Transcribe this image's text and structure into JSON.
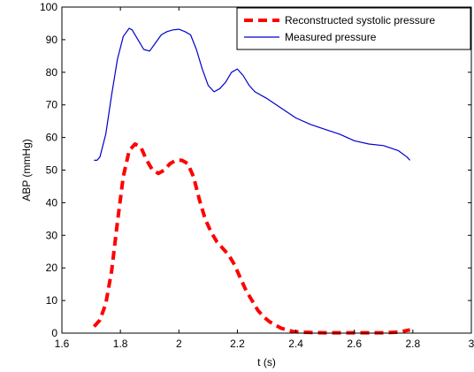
{
  "chart_data": {
    "type": "line",
    "title": "",
    "xlabel": "t (s)",
    "ylabel": "ABP (mmHg)",
    "xlim": [
      1.6,
      3.0
    ],
    "ylim": [
      0,
      100
    ],
    "xticks": [
      1.6,
      1.8,
      2.0,
      2.2,
      2.4,
      2.6,
      2.8,
      3.0
    ],
    "xtick_labels": [
      "1.6",
      "1.8",
      "2",
      "2.2",
      "2.4",
      "2.6",
      "2.8",
      "3"
    ],
    "yticks": [
      0,
      10,
      20,
      30,
      40,
      50,
      60,
      70,
      80,
      90,
      100
    ],
    "ytick_labels": [
      "0",
      "10",
      "20",
      "30",
      "40",
      "50",
      "60",
      "70",
      "80",
      "90",
      "100"
    ],
    "grid": false,
    "legend_position": "top-right",
    "series": [
      {
        "name": "Reconstructed systolic pressure",
        "color": "#ff0000",
        "style": "dashed",
        "x": [
          1.71,
          1.73,
          1.75,
          1.77,
          1.79,
          1.81,
          1.83,
          1.85,
          1.87,
          1.89,
          1.91,
          1.93,
          1.95,
          1.97,
          1.99,
          2.01,
          2.03,
          2.05,
          2.07,
          2.09,
          2.11,
          2.13,
          2.15,
          2.17,
          2.19,
          2.21,
          2.23,
          2.25,
          2.27,
          2.29,
          2.31,
          2.33,
          2.35,
          2.37,
          2.39,
          2.42,
          2.45,
          2.5,
          2.6,
          2.7,
          2.75,
          2.79
        ],
        "y": [
          2,
          4,
          9,
          19,
          34,
          48,
          56,
          58,
          57,
          53,
          50,
          49,
          50,
          52,
          53,
          53,
          52,
          48,
          41,
          35,
          31,
          28,
          26,
          24,
          21,
          17,
          13,
          10,
          7,
          5,
          3.5,
          2.5,
          1.5,
          1,
          0.5,
          0.3,
          0.2,
          0.1,
          0.1,
          0.1,
          0.3,
          1
        ]
      },
      {
        "name": "Measured pressure",
        "color": "#0000cc",
        "style": "solid",
        "x": [
          1.71,
          1.72,
          1.73,
          1.75,
          1.77,
          1.79,
          1.81,
          1.83,
          1.84,
          1.86,
          1.88,
          1.9,
          1.92,
          1.94,
          1.96,
          1.98,
          2.0,
          2.02,
          2.04,
          2.06,
          2.08,
          2.1,
          2.12,
          2.14,
          2.16,
          2.18,
          2.2,
          2.22,
          2.24,
          2.26,
          2.3,
          2.35,
          2.4,
          2.45,
          2.5,
          2.55,
          2.6,
          2.65,
          2.7,
          2.75,
          2.78,
          2.79
        ],
        "y": [
          53,
          53,
          54,
          61,
          73,
          84,
          91,
          93.5,
          93,
          90,
          87,
          86.5,
          89,
          91.5,
          92.5,
          93,
          93.2,
          92.5,
          91.5,
          87,
          81,
          76,
          74,
          75,
          77,
          80,
          81,
          79,
          76,
          74,
          72,
          69,
          66,
          64,
          62.5,
          61,
          59,
          58,
          57.5,
          56,
          54,
          53
        ]
      }
    ]
  }
}
